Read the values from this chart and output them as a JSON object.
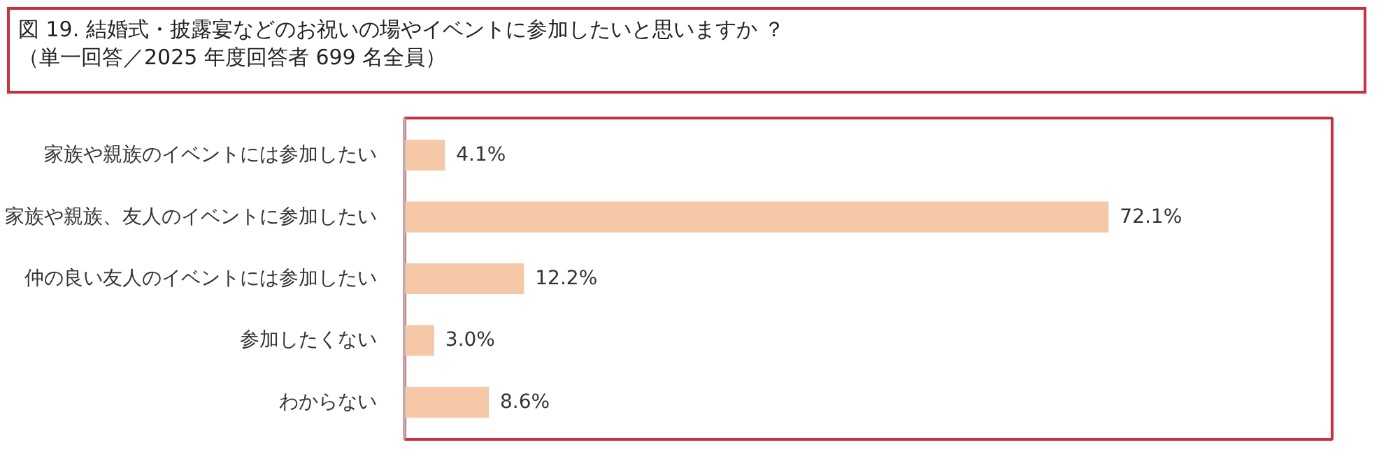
{
  "chart_data": {
    "type": "bar",
    "orientation": "horizontal",
    "title": "図 19. 結婚式・披露宴などのお祝いの場やイベントに参加したいと思いますか ？",
    "subtitle": "（単一回答／2025 年度回答者 699 名全員）",
    "categories": [
      "家族や親族のイベントには参加したい",
      "家族や親族、友人のイベントに参加したい",
      "仲の良い友人のイベントには参加したい",
      "参加したくない",
      "わからない"
    ],
    "values": [
      4.1,
      72.1,
      12.2,
      3.0,
      8.6
    ],
    "value_labels": [
      "4.1%",
      "72.1%",
      "12.2%",
      "3.0%",
      "8.6%"
    ],
    "color": "#f5c9a8",
    "xlim": [
      0,
      95
    ],
    "tick_labels": "y",
    "grid": false
  }
}
